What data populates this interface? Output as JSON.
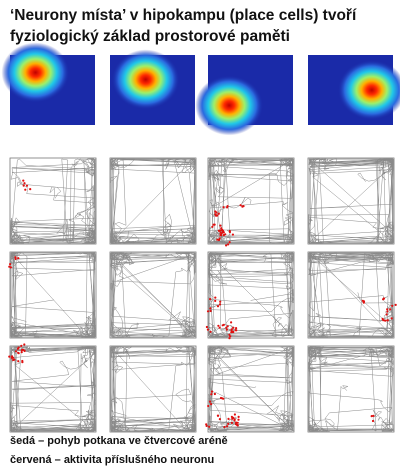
{
  "title": {
    "line1": "‘Neurony místa’ v hipokampu (place cells) tvoří",
    "line2": "fyziologický základ prostorové paměti"
  },
  "caption": {
    "line1": "šedá – pohyb potkana ve čtvercové aréně",
    "line2": "červená – aktivita příslušného neuronu"
  }
}
